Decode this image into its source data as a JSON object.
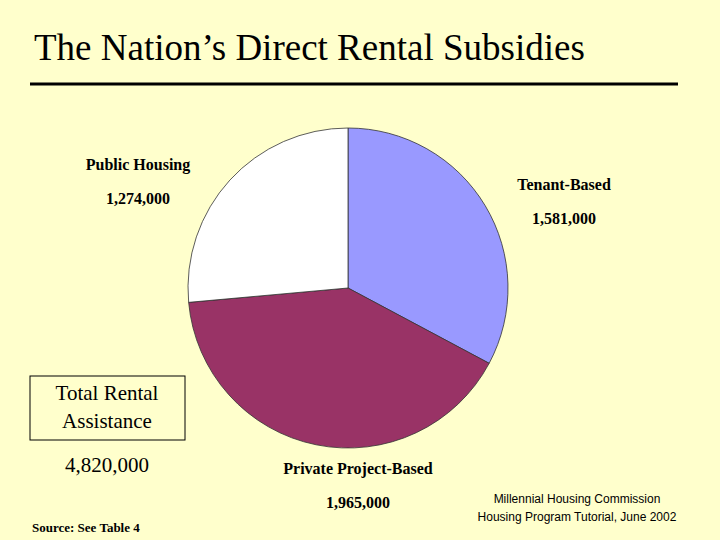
{
  "chart_data": {
    "type": "pie",
    "title": "The Nation’s Direct Rental Subsidies",
    "categories": [
      "Tenant-Based",
      "Private Project-Based",
      "Public Housing"
    ],
    "values": [
      1581000,
      1965000,
      1274000
    ],
    "value_labels": [
      "1,581,000",
      "1,965,000",
      "1,274,000"
    ],
    "colors": [
      "#9999ff",
      "#993366",
      "#ffffff"
    ],
    "data_labels": true,
    "total": 4820000,
    "total_label": "4,820,000",
    "total_title": "Total Rental Assistance",
    "source": "Source: See Table 4",
    "footnote": [
      "Millennial Housing Commission",
      "Housing Program Tutorial, June 2002"
    ]
  }
}
